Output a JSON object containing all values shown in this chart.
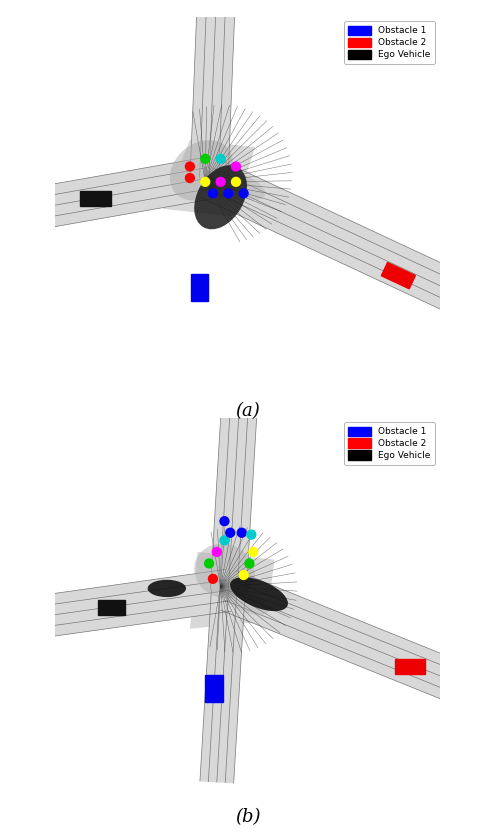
{
  "fig_width": 4.95,
  "fig_height": 8.35,
  "bg_color": "#ffffff",
  "legend_items": [
    {
      "label": "Obstacle 1",
      "color": "#0000ff"
    },
    {
      "label": "Obstacle 2",
      "color": "#ff0000"
    },
    {
      "label": "Ego Vehicle",
      "color": "#000000"
    }
  ],
  "label_a": "(a)",
  "label_b": "(b)"
}
